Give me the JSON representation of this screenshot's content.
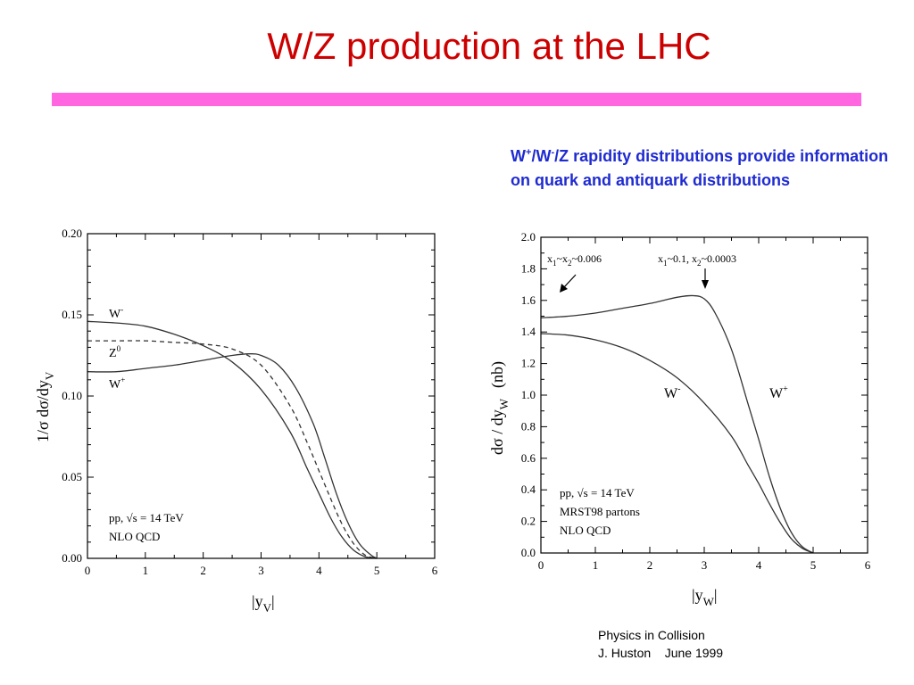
{
  "slide": {
    "title": "W/Z production at the LHC",
    "accent_bar_color": "#ff66e0",
    "title_color": "#cc0000",
    "note": {
      "part1": "W",
      "sup1": "+",
      "part2": "/W",
      "sup2": "-",
      "part3": "/Z rapidity distributions provide information on quark and antiquark distributions",
      "color": "#1f2bd0"
    },
    "credit": {
      "line1": "Physics in Collision",
      "line2": "J. Huston    June 1999"
    }
  },
  "chart_data": [
    {
      "type": "line",
      "xlabel": "|y",
      "xlabel_sub": "V",
      "xlabel_end": "|",
      "ylabel": "1/σ dσ/dy",
      "ylabel_sub": "V",
      "xlim": [
        0,
        6
      ],
      "ylim": [
        0,
        0.2
      ],
      "x_ticks": [
        "0",
        "1",
        "2",
        "3",
        "4",
        "5",
        "6"
      ],
      "y_ticks": [
        "0.00",
        "0.05",
        "0.10",
        "0.15",
        "0.20"
      ],
      "series": [
        {
          "name": "W",
          "name_sup": "-",
          "dash": false,
          "x": [
            0,
            0.5,
            1.0,
            1.5,
            2.0,
            2.5,
            3.0,
            3.5,
            3.8,
            4.0,
            4.2,
            4.4,
            4.6,
            4.8,
            5.0
          ],
          "y": [
            0.146,
            0.145,
            0.143,
            0.138,
            0.131,
            0.121,
            0.104,
            0.078,
            0.055,
            0.04,
            0.025,
            0.013,
            0.005,
            0.001,
            0.0
          ]
        },
        {
          "name": "Z",
          "name_sup": "0",
          "dash": true,
          "x": [
            0,
            0.5,
            1.0,
            1.5,
            2.0,
            2.5,
            3.0,
            3.5,
            3.8,
            4.0,
            4.2,
            4.4,
            4.6,
            4.8,
            5.0
          ],
          "y": [
            0.134,
            0.134,
            0.134,
            0.133,
            0.132,
            0.129,
            0.119,
            0.094,
            0.071,
            0.054,
            0.037,
            0.021,
            0.009,
            0.002,
            0.0
          ]
        },
        {
          "name": "W",
          "name_sup": "+",
          "dash": false,
          "x": [
            0,
            0.5,
            1.0,
            1.5,
            2.0,
            2.5,
            2.8,
            3.0,
            3.3,
            3.6,
            3.9,
            4.1,
            4.3,
            4.5,
            4.7,
            4.9,
            5.0
          ],
          "y": [
            0.115,
            0.115,
            0.117,
            0.119,
            0.122,
            0.125,
            0.126,
            0.125,
            0.119,
            0.105,
            0.083,
            0.062,
            0.04,
            0.022,
            0.009,
            0.002,
            0.0
          ]
        }
      ],
      "annotations": [
        "pp, √s = 14 TeV",
        "NLO QCD"
      ]
    },
    {
      "type": "line",
      "xlabel": "|y",
      "xlabel_sub": "W",
      "xlabel_end": "|",
      "ylabel": "dσ / dy",
      "ylabel_sub": "W",
      "ylabel_unit": "(nb)",
      "xlim": [
        0,
        6
      ],
      "ylim": [
        0,
        2.0
      ],
      "x_ticks": [
        "0",
        "1",
        "2",
        "3",
        "4",
        "5",
        "6"
      ],
      "y_ticks": [
        "0.0",
        "0.2",
        "0.4",
        "0.6",
        "0.8",
        "1.0",
        "1.2",
        "1.4",
        "1.6",
        "1.8",
        "2.0"
      ],
      "series": [
        {
          "name": "W",
          "name_sup": "+",
          "dash": false,
          "x": [
            0,
            0.5,
            1.0,
            1.5,
            2.0,
            2.5,
            2.8,
            3.0,
            3.2,
            3.5,
            3.8,
            4.0,
            4.2,
            4.4,
            4.6,
            4.8,
            5.0
          ],
          "y": [
            1.49,
            1.5,
            1.52,
            1.55,
            1.58,
            1.62,
            1.63,
            1.61,
            1.52,
            1.29,
            0.95,
            0.72,
            0.48,
            0.28,
            0.13,
            0.04,
            0.0
          ]
        },
        {
          "name": "W",
          "name_sup": "-",
          "dash": false,
          "x": [
            0,
            0.5,
            1.0,
            1.5,
            2.0,
            2.5,
            3.0,
            3.5,
            3.8,
            4.0,
            4.2,
            4.4,
            4.6,
            4.8,
            5.0
          ],
          "y": [
            1.39,
            1.38,
            1.35,
            1.3,
            1.22,
            1.11,
            0.95,
            0.74,
            0.56,
            0.44,
            0.31,
            0.19,
            0.09,
            0.03,
            0.0
          ]
        }
      ],
      "annotations": [
        "pp, √s = 14 TeV",
        "MRST98 partons",
        "NLO QCD"
      ],
      "arrow_labels": [
        {
          "main": "x",
          "s1": "1",
          "mid": "~x",
          "s2": "2",
          "end": "~0.006"
        },
        {
          "main": "x",
          "s1": "1",
          "mid": "~0.1, x",
          "s2": "2",
          "end": "~0.0003"
        }
      ]
    }
  ]
}
